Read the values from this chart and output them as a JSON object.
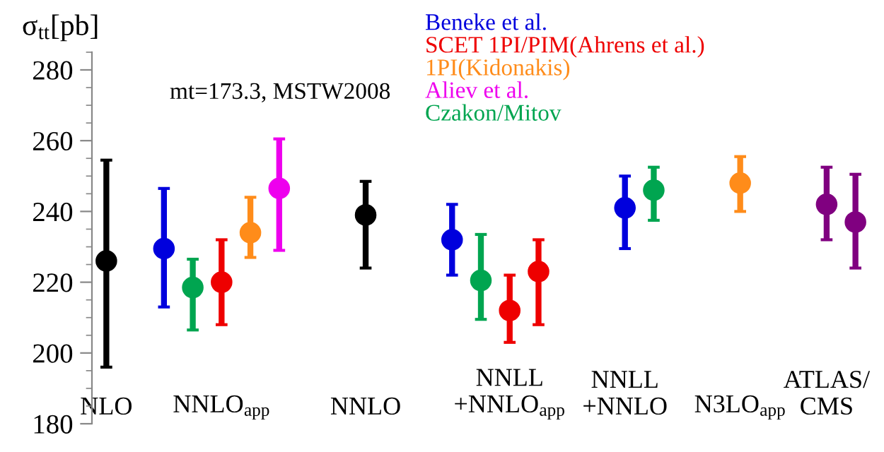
{
  "chart_data": {
    "type": "scatter",
    "ylabel": "σ$_{tt}$[pb]",
    "annotations": [
      "mt=173.3, MSTW2008"
    ],
    "categories": [
      "NLO",
      null,
      null,
      null,
      "NNLO$_{app}$",
      null,
      null,
      null,
      null,
      "NNLO",
      null,
      null,
      null,
      null,
      "NNLL\n+NNLO$_{app}$",
      null,
      null,
      null,
      "NNLL\n+NNLO",
      null,
      null,
      null,
      "N3LO$_{app}$",
      null,
      null,
      "ATLAS/\nCMS",
      null
    ],
    "ylim": [
      180,
      285
    ],
    "yticks": [
      180,
      200,
      220,
      240,
      260,
      280
    ],
    "grid": false,
    "legend": "top right",
    "marker": "circle",
    "series": [
      {
        "color": "#000000",
        "values": [
          226,
          null,
          null,
          null,
          null,
          null,
          null,
          null,
          null,
          239,
          null,
          null,
          null,
          null,
          null,
          null,
          null,
          null,
          null,
          null,
          null,
          null,
          null,
          null,
          null,
          null,
          null
        ],
        "errors": [
          [
            196,
            254.5
          ],
          null,
          null,
          null,
          null,
          null,
          null,
          null,
          null,
          [
            224,
            248.5
          ],
          null,
          null,
          null,
          null,
          null,
          null,
          null,
          null,
          null,
          null,
          null,
          null,
          null,
          null,
          null,
          null,
          null
        ]
      },
      {
        "name": "Beneke et al.",
        "color": "#0000dd",
        "values": [
          null,
          null,
          229.5,
          null,
          null,
          null,
          null,
          null,
          null,
          null,
          null,
          null,
          232,
          null,
          null,
          null,
          null,
          null,
          241,
          null,
          null,
          null,
          null,
          null,
          null,
          null,
          null
        ],
        "errors": [
          null,
          null,
          [
            213,
            246.5
          ],
          null,
          null,
          null,
          null,
          null,
          null,
          null,
          null,
          null,
          [
            222,
            242
          ],
          null,
          null,
          null,
          null,
          null,
          [
            229.5,
            250
          ],
          null,
          null,
          null,
          null,
          null,
          null,
          null,
          null
        ]
      },
      {
        "name": "SCET 1PI/PIM(Ahrens et al.)",
        "color": "#ee0000",
        "values": [
          null,
          null,
          null,
          null,
          220,
          null,
          null,
          null,
          null,
          null,
          null,
          null,
          null,
          null,
          212,
          223,
          null,
          null,
          null,
          null,
          null,
          null,
          null,
          null,
          null,
          null,
          null
        ],
        "errors": [
          null,
          null,
          null,
          null,
          [
            208,
            232
          ],
          null,
          null,
          null,
          null,
          null,
          null,
          null,
          null,
          null,
          [
            203,
            222
          ],
          [
            208,
            232
          ],
          null,
          null,
          null,
          null,
          null,
          null,
          null,
          null,
          null,
          null,
          null
        ]
      },
      {
        "name": "1PI(Kidonakis)",
        "color": "#ff8c1a",
        "values": [
          null,
          null,
          null,
          null,
          null,
          234,
          null,
          null,
          null,
          null,
          null,
          null,
          null,
          null,
          null,
          null,
          null,
          null,
          null,
          null,
          null,
          null,
          248,
          null,
          null,
          null,
          null
        ],
        "errors": [
          null,
          null,
          null,
          null,
          null,
          [
            227,
            244
          ],
          null,
          null,
          null,
          null,
          null,
          null,
          null,
          null,
          null,
          null,
          null,
          null,
          null,
          null,
          null,
          null,
          [
            240,
            255.5
          ],
          null,
          null,
          null,
          null
        ]
      },
      {
        "name": "Aliev et al.",
        "color": "#ee00ee",
        "values": [
          null,
          null,
          null,
          null,
          null,
          null,
          246.5,
          null,
          null,
          null,
          null,
          null,
          null,
          null,
          null,
          null,
          null,
          null,
          null,
          null,
          null,
          null,
          null,
          null,
          null,
          null,
          null
        ],
        "errors": [
          null,
          null,
          null,
          null,
          null,
          null,
          [
            229,
            260.5
          ],
          null,
          null,
          null,
          null,
          null,
          null,
          null,
          null,
          null,
          null,
          null,
          null,
          null,
          null,
          null,
          null,
          null,
          null,
          null,
          null
        ]
      },
      {
        "name": "Czakon/Mitov",
        "color": "#00a550",
        "values": [
          null,
          null,
          null,
          218.5,
          null,
          null,
          null,
          null,
          null,
          null,
          null,
          null,
          null,
          220.5,
          null,
          null,
          null,
          null,
          null,
          246,
          null,
          null,
          null,
          null,
          null,
          null,
          null
        ],
        "errors": [
          null,
          null,
          null,
          [
            206.5,
            226.5
          ],
          null,
          null,
          null,
          null,
          null,
          null,
          null,
          null,
          null,
          [
            209.5,
            233.5
          ],
          null,
          null,
          null,
          null,
          null,
          [
            237.5,
            252.5
          ],
          null,
          null,
          null,
          null,
          null,
          null,
          null
        ]
      },
      {
        "color": "#800080",
        "values": [
          null,
          null,
          null,
          null,
          null,
          null,
          null,
          null,
          null,
          null,
          null,
          null,
          null,
          null,
          null,
          null,
          null,
          null,
          null,
          null,
          null,
          null,
          null,
          null,
          null,
          242,
          237
        ],
        "errors": [
          null,
          null,
          null,
          null,
          null,
          null,
          null,
          null,
          null,
          null,
          null,
          null,
          null,
          null,
          null,
          null,
          null,
          null,
          null,
          null,
          null,
          null,
          null,
          null,
          null,
          [
            232,
            252.5
          ],
          [
            224,
            250.5
          ]
        ]
      }
    ]
  }
}
